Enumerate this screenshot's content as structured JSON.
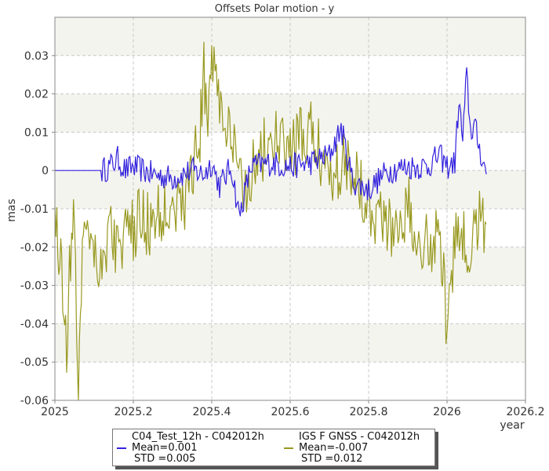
{
  "chart_data": {
    "type": "line",
    "title": "Offsets Polar motion - y",
    "ylabel": "mas",
    "xlabel": "year",
    "xlim": [
      2025,
      2026.2
    ],
    "ylim": [
      -0.06,
      0.04
    ],
    "xticks": [
      "2025",
      "2025.2",
      "2025.4",
      "2025.6",
      "2025.8",
      "2026",
      "2026.2"
    ],
    "yticks": [
      "-0.06",
      "-0.05",
      "-0.04",
      "-0.03",
      "-0.02",
      "-0.01",
      "0",
      "0.01",
      "0.02",
      "0.03"
    ],
    "grid": true,
    "legend_position": "bottom-center",
    "series": [
      {
        "name": "C04_Test_12h - C042012h",
        "color": "#3322dd",
        "mean": "Mean=0.001",
        "std": "STD =0.005",
        "x": [
          2025.0,
          2025.12,
          2025.14,
          2025.16,
          2025.18,
          2025.2,
          2025.25,
          2025.3,
          2025.35,
          2025.38,
          2025.4,
          2025.42,
          2025.45,
          2025.47,
          2025.5,
          2025.55,
          2025.6,
          2025.65,
          2025.7,
          2025.73,
          2025.76,
          2025.8,
          2025.85,
          2025.9,
          2025.95,
          2025.98,
          2026.0,
          2026.02,
          2026.03,
          2026.04,
          2026.05,
          2026.06,
          2026.07,
          2026.08,
          2026.1
        ],
        "y": [
          0.0,
          0.0,
          0.001,
          0.003,
          0.0,
          0.001,
          -0.001,
          -0.002,
          0.0,
          -0.001,
          0.002,
          -0.004,
          0.001,
          -0.012,
          0.001,
          0.002,
          0.001,
          0.002,
          0.004,
          0.011,
          -0.003,
          -0.005,
          0.0,
          0.001,
          0.001,
          0.004,
          0.001,
          0.002,
          0.018,
          0.008,
          0.025,
          0.01,
          0.012,
          0.007,
          -0.001
        ]
      },
      {
        "name": "IGS F GNSS - C042012h",
        "color": "#999922",
        "mean": "Mean=-0.007",
        "std": "STD =0.012",
        "x": [
          2025.0,
          2025.01,
          2025.02,
          2025.03,
          2025.04,
          2025.05,
          2025.06,
          2025.07,
          2025.08,
          2025.1,
          2025.12,
          2025.14,
          2025.16,
          2025.18,
          2025.2,
          2025.22,
          2025.25,
          2025.28,
          2025.3,
          2025.32,
          2025.35,
          2025.37,
          2025.38,
          2025.39,
          2025.4,
          2025.42,
          2025.44,
          2025.46,
          2025.48,
          2025.5,
          2025.55,
          2025.6,
          2025.65,
          2025.7,
          2025.75,
          2025.8,
          2025.85,
          2025.9,
          2025.95,
          2025.98,
          2026.0,
          2026.02,
          2026.04,
          2026.06,
          2026.08,
          2026.1
        ],
        "y": [
          -0.01,
          -0.02,
          -0.03,
          -0.045,
          -0.02,
          -0.015,
          -0.058,
          -0.02,
          -0.01,
          -0.02,
          -0.025,
          -0.015,
          -0.02,
          -0.018,
          -0.016,
          -0.012,
          -0.015,
          -0.01,
          -0.005,
          -0.012,
          0.0,
          0.01,
          0.025,
          0.015,
          0.032,
          0.018,
          0.01,
          0.003,
          -0.005,
          0.0,
          0.008,
          0.005,
          0.01,
          0.0,
          0.003,
          -0.008,
          -0.015,
          -0.01,
          -0.02,
          -0.015,
          -0.04,
          -0.02,
          -0.015,
          -0.025,
          -0.01,
          -0.014
        ]
      }
    ]
  }
}
